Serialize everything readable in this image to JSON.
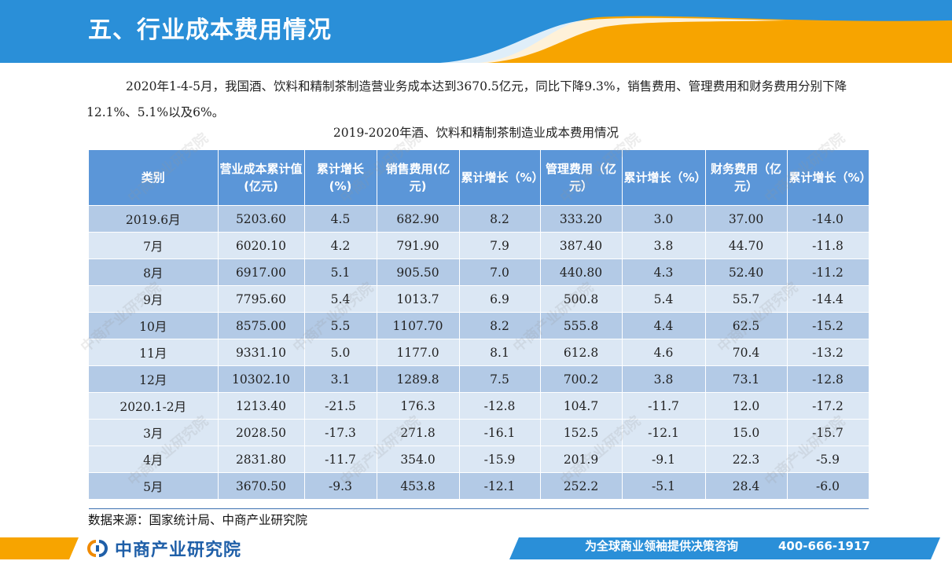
{
  "header": {
    "title": "五、行业成本费用情况",
    "colors": {
      "banner_blue": "#2a8fd8",
      "accent_orange": "#f7a400"
    }
  },
  "intro": {
    "text": "2020年1-4-5月，我国酒、饮料和精制茶制造营业务成本达到3670.5亿元，同比下降9.3%，销售费用、管理费用和财务费用分别下降12.1%、5.1%以及6%。"
  },
  "table": {
    "caption": "2019-2020年酒、饮料和精制茶制造业成本费用情况",
    "headers": [
      "类别",
      "营业成本累计值(亿元)",
      "累计增长(%)",
      "销售费用(亿元)",
      "累计增长（%）",
      "管理费用（亿元）",
      "累计增长（%）",
      "财务费用（亿元）",
      "累计增长（%）"
    ],
    "rows": [
      [
        "2019.6月",
        "5203.60",
        "4.5",
        "682.90",
        "8.2",
        "333.20",
        "3.0",
        "37.00",
        "-14.0"
      ],
      [
        "7月",
        "6020.10",
        "4.2",
        "791.90",
        "7.9",
        "387.40",
        "3.8",
        "44.70",
        "-11.8"
      ],
      [
        "8月",
        "6917.00",
        "5.1",
        "905.50",
        "7.0",
        "440.80",
        "4.3",
        "52.40",
        "-11.2"
      ],
      [
        "9月",
        "7795.60",
        "5.4",
        "1013.7",
        "6.9",
        "500.8",
        "5.4",
        "55.7",
        "-14.4"
      ],
      [
        "10月",
        "8575.00",
        "5.5",
        "1107.70",
        "8.2",
        "555.8",
        "4.4",
        "62.5",
        "-15.2"
      ],
      [
        "11月",
        "9331.10",
        "5.0",
        "1177.0",
        "8.1",
        "612.8",
        "4.6",
        "70.4",
        "-13.2"
      ],
      [
        "12月",
        "10302.10",
        "3.1",
        "1289.8",
        "7.5",
        "700.2",
        "3.8",
        "73.1",
        "-12.8"
      ],
      [
        "2020.1-2月",
        "1213.40",
        "-21.5",
        "176.3",
        "-12.8",
        "104.7",
        "-11.7",
        "12.0",
        "-17.2"
      ],
      [
        "3月",
        "2028.50",
        "-17.3",
        "271.8",
        "-16.1",
        "152.5",
        "-12.1",
        "15.0",
        "-15.7"
      ],
      [
        "4月",
        "2831.80",
        "-11.7",
        "354.0",
        "-15.9",
        "201.9",
        "-9.1",
        "22.3",
        "-5.9"
      ],
      [
        "5月",
        "3670.50",
        "-9.3",
        "453.8",
        "-12.1",
        "252.2",
        "-5.1",
        "28.4",
        "-6.0"
      ]
    ],
    "colors": {
      "header_bg": "#5b96d8",
      "row_dark": "#b3cae6",
      "row_light": "#dbe7f4"
    }
  },
  "source": "数据来源：国家统计局、中商产业研究院",
  "watermark": "中商产业研究院",
  "footer": {
    "brand": "中商产业研究院",
    "logo_icon": "zhongshang-logo-icon",
    "slogan": "为全球商业领袖提供决策咨询",
    "hotline": "400-666-1917"
  }
}
